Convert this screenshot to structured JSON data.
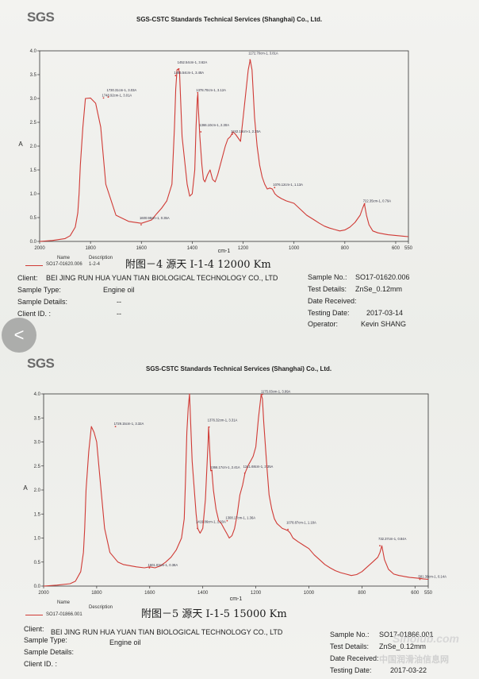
{
  "colors": {
    "line": "#d03a35",
    "axis": "#333333"
  },
  "nav": {
    "back_icon": "chevron-left-icon",
    "label": "<"
  },
  "watermark": {
    "text": "中国润滑油信息网",
    "logo": "Sinolub.com"
  },
  "reports": [
    {
      "logo": "SGS",
      "header": "SGS-CSTC Standards Technical Services (Shanghai) Co., Ltd.",
      "legend": {
        "name_header": "Name",
        "desc_header": "Description",
        "name": "SO17-01620.006",
        "desc": "1-2-4"
      },
      "handwritten": "附图－4  源天 I-1-4  12000 Km",
      "client_label": "Client:",
      "client": "BEI JING RUN HUA YUAN TIAN BIOLOGICAL TECHNOLOGY CO., LTD",
      "sample_type_label": "Sample Type:",
      "sample_type": "Engine oil",
      "sample_details_label": "Sample Details:",
      "sample_details": "--",
      "client_id_label": "Client ID. :",
      "client_id": "--",
      "sample_no_label": "Sample No.:",
      "sample_no": "SO17-01620.006",
      "test_details_label": "Test Details:",
      "test_details": "ZnSe_0.12mm",
      "date_received_label": "Date Received:",
      "date_received": "",
      "testing_date_label": "Testing Date:",
      "testing_date": "2017-03-14",
      "operator_label": "Operator:",
      "operator": "Kevin SHANG"
    },
    {
      "logo": "SGS",
      "header": "SGS-CSTC Standards Technical Services (Shanghai) Co., Ltd.",
      "legend": {
        "name_header": "Name",
        "desc_header": "Description",
        "name": "SO17-01866.001",
        "desc": ""
      },
      "handwritten": "附图－5  源天 I-1-5   15000 Km",
      "client_label": "Client:",
      "client": "BEI JING RUN HUA YUAN TIAN BIOLOGICAL TECHNOLOGY CO., LTD",
      "sample_type_label": "Sample Type:",
      "sample_type": "Engine oil",
      "sample_details_label": "Sample Details:",
      "sample_details": "",
      "client_id_label": "Client ID. :",
      "client_id": "",
      "sample_no_label": "Sample No.:",
      "sample_no": "SO17-01866.001",
      "test_details_label": "Test Details:",
      "test_details": "ZnSe_0.12mm",
      "date_received_label": "Date Received:",
      "date_received": "",
      "testing_date_label": "Testing Date:",
      "testing_date": "2017-03-22",
      "operator_label": "",
      "operator": ""
    }
  ],
  "chart_data": [
    {
      "type": "line",
      "xlabel": "cm-1",
      "ylabel": "A",
      "xlim": [
        2000,
        550
      ],
      "ylim": [
        0,
        4.0
      ],
      "x_reversed": true,
      "xticks": [
        2000,
        1800,
        1600,
        1400,
        1200,
        1000,
        800,
        600,
        550
      ],
      "yticks": [
        0.0,
        0.5,
        1.0,
        1.5,
        2.0,
        2.5,
        3.0,
        3.5,
        4.0
      ],
      "series": [
        {
          "x": [
            2000,
            1950,
            1900,
            1880,
            1860,
            1850,
            1845,
            1840,
            1830,
            1820,
            1800,
            1780,
            1760,
            1740,
            1700,
            1650,
            1600,
            1560,
            1540,
            1520,
            1500,
            1480,
            1470,
            1465,
            1460,
            1455,
            1450,
            1440,
            1420,
            1410,
            1400,
            1390,
            1385,
            1380,
            1378,
            1376,
            1370,
            1362,
            1356,
            1350,
            1340,
            1330,
            1320,
            1310,
            1300,
            1290,
            1280,
            1270,
            1260,
            1250,
            1240,
            1230,
            1210,
            1200,
            1190,
            1180,
            1172,
            1165,
            1155,
            1145,
            1135,
            1125,
            1115,
            1105,
            1095,
            1085,
            1075,
            1065,
            1050,
            1030,
            1000,
            970,
            950,
            920,
            900,
            880,
            860,
            840,
            820,
            800,
            780,
            760,
            740,
            730,
            723,
            715,
            705,
            690,
            670,
            650,
            630,
            610,
            590,
            570,
            550
          ],
          "y": [
            0.0,
            0.02,
            0.06,
            0.12,
            0.3,
            0.6,
            1.0,
            1.6,
            2.4,
            3.0,
            3.01,
            2.9,
            2.4,
            1.2,
            0.55,
            0.42,
            0.38,
            0.45,
            0.58,
            0.7,
            0.85,
            1.2,
            2.4,
            3.2,
            3.6,
            3.62,
            3.55,
            2.2,
            1.2,
            0.95,
            1.0,
            1.5,
            2.4,
            3.0,
            3.1,
            2.8,
            2.2,
            1.6,
            1.3,
            1.25,
            1.4,
            1.5,
            1.3,
            1.25,
            1.4,
            1.6,
            1.8,
            2.0,
            2.15,
            2.2,
            2.3,
            2.25,
            2.1,
            2.6,
            3.1,
            3.6,
            3.81,
            3.6,
            2.6,
            2.0,
            1.6,
            1.35,
            1.2,
            1.1,
            1.12,
            1.1,
            1.0,
            0.95,
            0.9,
            0.85,
            0.8,
            0.65,
            0.55,
            0.45,
            0.38,
            0.32,
            0.28,
            0.25,
            0.22,
            0.24,
            0.3,
            0.4,
            0.55,
            0.7,
            0.79,
            0.55,
            0.35,
            0.22,
            0.18,
            0.16,
            0.14,
            0.13,
            0.12,
            0.11,
            0.1
          ]
        }
      ],
      "annotations": [
        {
          "text": "1748.92cm-1, 3.01A",
          "x": 1748.92,
          "y": 3.01
        },
        {
          "text": "1730.31cm-1, 3.03A",
          "x": 1730.31,
          "y": 3.03
        },
        {
          "text": "1465.54cm-1, 3.48A",
          "x": 1465.54,
          "y": 3.48
        },
        {
          "text": "1452.54cm-1, 3.62A",
          "x": 1452.54,
          "y": 3.62
        },
        {
          "text": "1378.70cm-1, 3.12A",
          "x": 1378.7,
          "y": 3.12
        },
        {
          "text": "1366.10cm-1, 2.30A",
          "x": 1366.1,
          "y": 2.3
        },
        {
          "text": "1242.18cm-1, 2.25A",
          "x": 1242.18,
          "y": 2.25
        },
        {
          "text": "1172.70cm-1, 3.81A",
          "x": 1172.7,
          "y": 3.81
        },
        {
          "text": "1076.12cm-1, 1.13A",
          "x": 1076.12,
          "y": 1.13
        },
        {
          "text": "1600.98cm-1, 0.35A",
          "x": 1600.98,
          "y": 0.35
        },
        {
          "text": "722.35cm-1, 0.79A",
          "x": 722.35,
          "y": 0.79
        }
      ]
    },
    {
      "type": "line",
      "xlabel": "cm-1",
      "ylabel": "A",
      "xlim": [
        2000,
        550
      ],
      "ylim": [
        0,
        4.0
      ],
      "x_reversed": true,
      "xticks": [
        2000,
        1800,
        1600,
        1400,
        1200,
        1000,
        800,
        600,
        550
      ],
      "yticks": [
        0.0,
        0.5,
        1.0,
        1.5,
        2.0,
        2.5,
        3.0,
        3.5,
        4.0
      ],
      "series": [
        {
          "x": [
            2000,
            1950,
            1900,
            1880,
            1860,
            1850,
            1845,
            1840,
            1830,
            1820,
            1810,
            1800,
            1790,
            1770,
            1750,
            1720,
            1700,
            1650,
            1620,
            1600,
            1580,
            1560,
            1540,
            1520,
            1500,
            1480,
            1470,
            1465,
            1460,
            1455,
            1450,
            1440,
            1425,
            1419,
            1410,
            1400,
            1390,
            1380,
            1378,
            1376,
            1370,
            1366,
            1360,
            1350,
            1340,
            1330,
            1320,
            1310,
            1300,
            1290,
            1280,
            1270,
            1260,
            1250,
            1241,
            1230,
            1220,
            1210,
            1200,
            1190,
            1180,
            1175,
            1170,
            1160,
            1150,
            1140,
            1130,
            1120,
            1110,
            1100,
            1090,
            1078,
            1070,
            1060,
            1040,
            1020,
            1000,
            980,
            960,
            940,
            920,
            900,
            880,
            860,
            840,
            820,
            800,
            780,
            760,
            740,
            732,
            725,
            715,
            700,
            680,
            660,
            640,
            620,
            600,
            581,
            570,
            550
          ],
          "y": [
            0.0,
            0.02,
            0.05,
            0.1,
            0.3,
            0.7,
            1.2,
            2.0,
            2.8,
            3.32,
            3.2,
            3.0,
            2.4,
            1.2,
            0.7,
            0.5,
            0.45,
            0.4,
            0.38,
            0.4,
            0.38,
            0.42,
            0.5,
            0.6,
            0.75,
            1.0,
            1.4,
            2.2,
            3.2,
            3.7,
            4.0,
            2.6,
            1.5,
            1.2,
            1.1,
            1.2,
            1.8,
            3.0,
            3.31,
            3.1,
            2.4,
            2.41,
            2.0,
            1.6,
            1.36,
            1.3,
            1.2,
            1.1,
            1.0,
            1.05,
            1.2,
            1.5,
            1.9,
            2.1,
            2.35,
            2.5,
            2.6,
            2.7,
            2.9,
            3.5,
            3.99,
            3.9,
            3.4,
            2.6,
            1.9,
            1.6,
            1.4,
            1.3,
            1.25,
            1.2,
            1.18,
            1.15,
            1.1,
            1.0,
            0.92,
            0.85,
            0.78,
            0.65,
            0.55,
            0.45,
            0.38,
            0.32,
            0.28,
            0.25,
            0.22,
            0.24,
            0.3,
            0.4,
            0.5,
            0.6,
            0.7,
            0.84,
            0.55,
            0.35,
            0.25,
            0.22,
            0.2,
            0.18,
            0.17,
            0.16,
            0.15,
            0.14
          ]
        }
      ],
      "annotations": [
        {
          "text": "1729.15cm-1, 3.32A",
          "x": 1729.15,
          "y": 3.32
        },
        {
          "text": "1376.32cm-1, 3.31A",
          "x": 1376.32,
          "y": 3.31
        },
        {
          "text": "1366.17cm-1, 2.41A",
          "x": 1366.17,
          "y": 2.41
        },
        {
          "text": "1241.68cm-1, 2.35A",
          "x": 1241.68,
          "y": 2.35
        },
        {
          "text": "1308.17cm-1, 1.36A",
          "x": 1308.17,
          "y": 1.36
        },
        {
          "text": "1419.86cm-1, 1.20A",
          "x": 1419.86,
          "y": 1.2
        },
        {
          "text": "1175.03cm-1, 3.99A",
          "x": 1175.03,
          "y": 3.99
        },
        {
          "text": "1078.87cm-1, 1.18A",
          "x": 1078.87,
          "y": 1.18
        },
        {
          "text": "1601.03cm-1, 0.38A",
          "x": 1601.03,
          "y": 0.38
        },
        {
          "text": "732.37cm-1, 0.84A",
          "x": 732.37,
          "y": 0.84
        },
        {
          "text": "581.38cm-1, 0.14A",
          "x": 581.38,
          "y": 0.14
        }
      ]
    }
  ]
}
